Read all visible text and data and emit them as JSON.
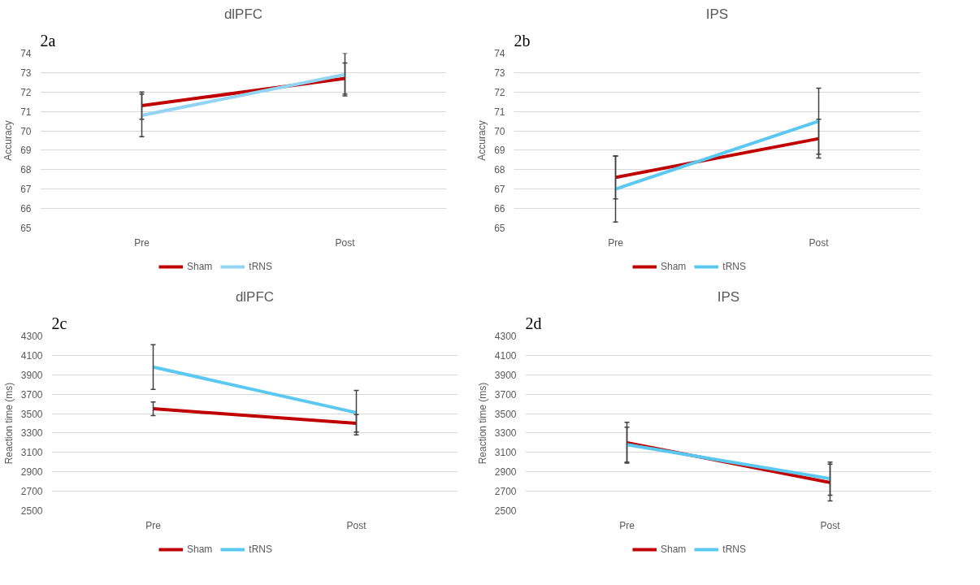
{
  "chart_data": [
    {
      "type": "line",
      "title": "dlPFC",
      "ylabel": "Accuracy",
      "annotations": [
        "2a"
      ],
      "categories": [
        "Pre",
        "Post"
      ],
      "ylim": [
        65,
        74
      ],
      "yticks": [
        65,
        66,
        67,
        68,
        69,
        70,
        71,
        72,
        73,
        74
      ],
      "grid": "y",
      "legend": "bottom",
      "marker": "none",
      "line_style": "solid",
      "series": [
        {
          "name": "Sham",
          "color": "#c00000",
          "values": [
            71.3,
            72.7
          ],
          "errors": [
            0.7,
            0.8
          ]
        },
        {
          "name": "tRNS",
          "color": "#92d4f2",
          "values": [
            70.8,
            72.9
          ],
          "errors": [
            1.1,
            1.1
          ]
        }
      ]
    },
    {
      "type": "line",
      "title": "IPS",
      "ylabel": "Accuracy",
      "annotations": [
        "2b"
      ],
      "categories": [
        "Pre",
        "Post"
      ],
      "ylim": [
        65,
        74
      ],
      "yticks": [
        65,
        66,
        67,
        68,
        69,
        70,
        71,
        72,
        73,
        74
      ],
      "grid": "y",
      "legend": "bottom",
      "marker": "none",
      "line_style": "solid",
      "series": [
        {
          "name": "Sham",
          "color": "#c00000",
          "values": [
            67.6,
            69.6
          ],
          "errors": [
            1.1,
            1.0
          ]
        },
        {
          "name": "tRNS",
          "color": "#5ac8f0",
          "values": [
            67.0,
            70.5
          ],
          "errors": [
            1.7,
            1.7
          ]
        }
      ]
    },
    {
      "type": "line",
      "title": "dlPFC",
      "ylabel": "Reaction time (ms)",
      "annotations": [
        "2c"
      ],
      "categories": [
        "Pre",
        "Post"
      ],
      "ylim": [
        2500,
        4300
      ],
      "yticks": [
        2500,
        2700,
        2900,
        3100,
        3300,
        3500,
        3700,
        3900,
        4100,
        4300
      ],
      "grid": "y",
      "legend": "bottom",
      "marker": "none",
      "line_style": "solid",
      "series": [
        {
          "name": "Sham",
          "color": "#c00000",
          "values": [
            3550,
            3400
          ],
          "errors": [
            70,
            90
          ]
        },
        {
          "name": "tRNS",
          "color": "#5ac8f0",
          "values": [
            3980,
            3510
          ],
          "errors": [
            230,
            230
          ]
        }
      ]
    },
    {
      "type": "line",
      "title": "IPS",
      "ylabel": "Reaction time (ms)",
      "annotations": [
        "2d"
      ],
      "categories": [
        "Pre",
        "Post"
      ],
      "ylim": [
        2500,
        4300
      ],
      "yticks": [
        2500,
        2700,
        2900,
        3100,
        3300,
        3500,
        3700,
        3900,
        4100,
        4300
      ],
      "grid": "y",
      "legend": "bottom",
      "marker": "none",
      "line_style": "solid",
      "series": [
        {
          "name": "Sham",
          "color": "#c00000",
          "values": [
            3200,
            2790
          ],
          "errors": [
            210,
            190
          ]
        },
        {
          "name": "tRNS",
          "color": "#5ac8f0",
          "values": [
            3180,
            2830
          ],
          "errors": [
            180,
            170
          ]
        }
      ]
    }
  ]
}
